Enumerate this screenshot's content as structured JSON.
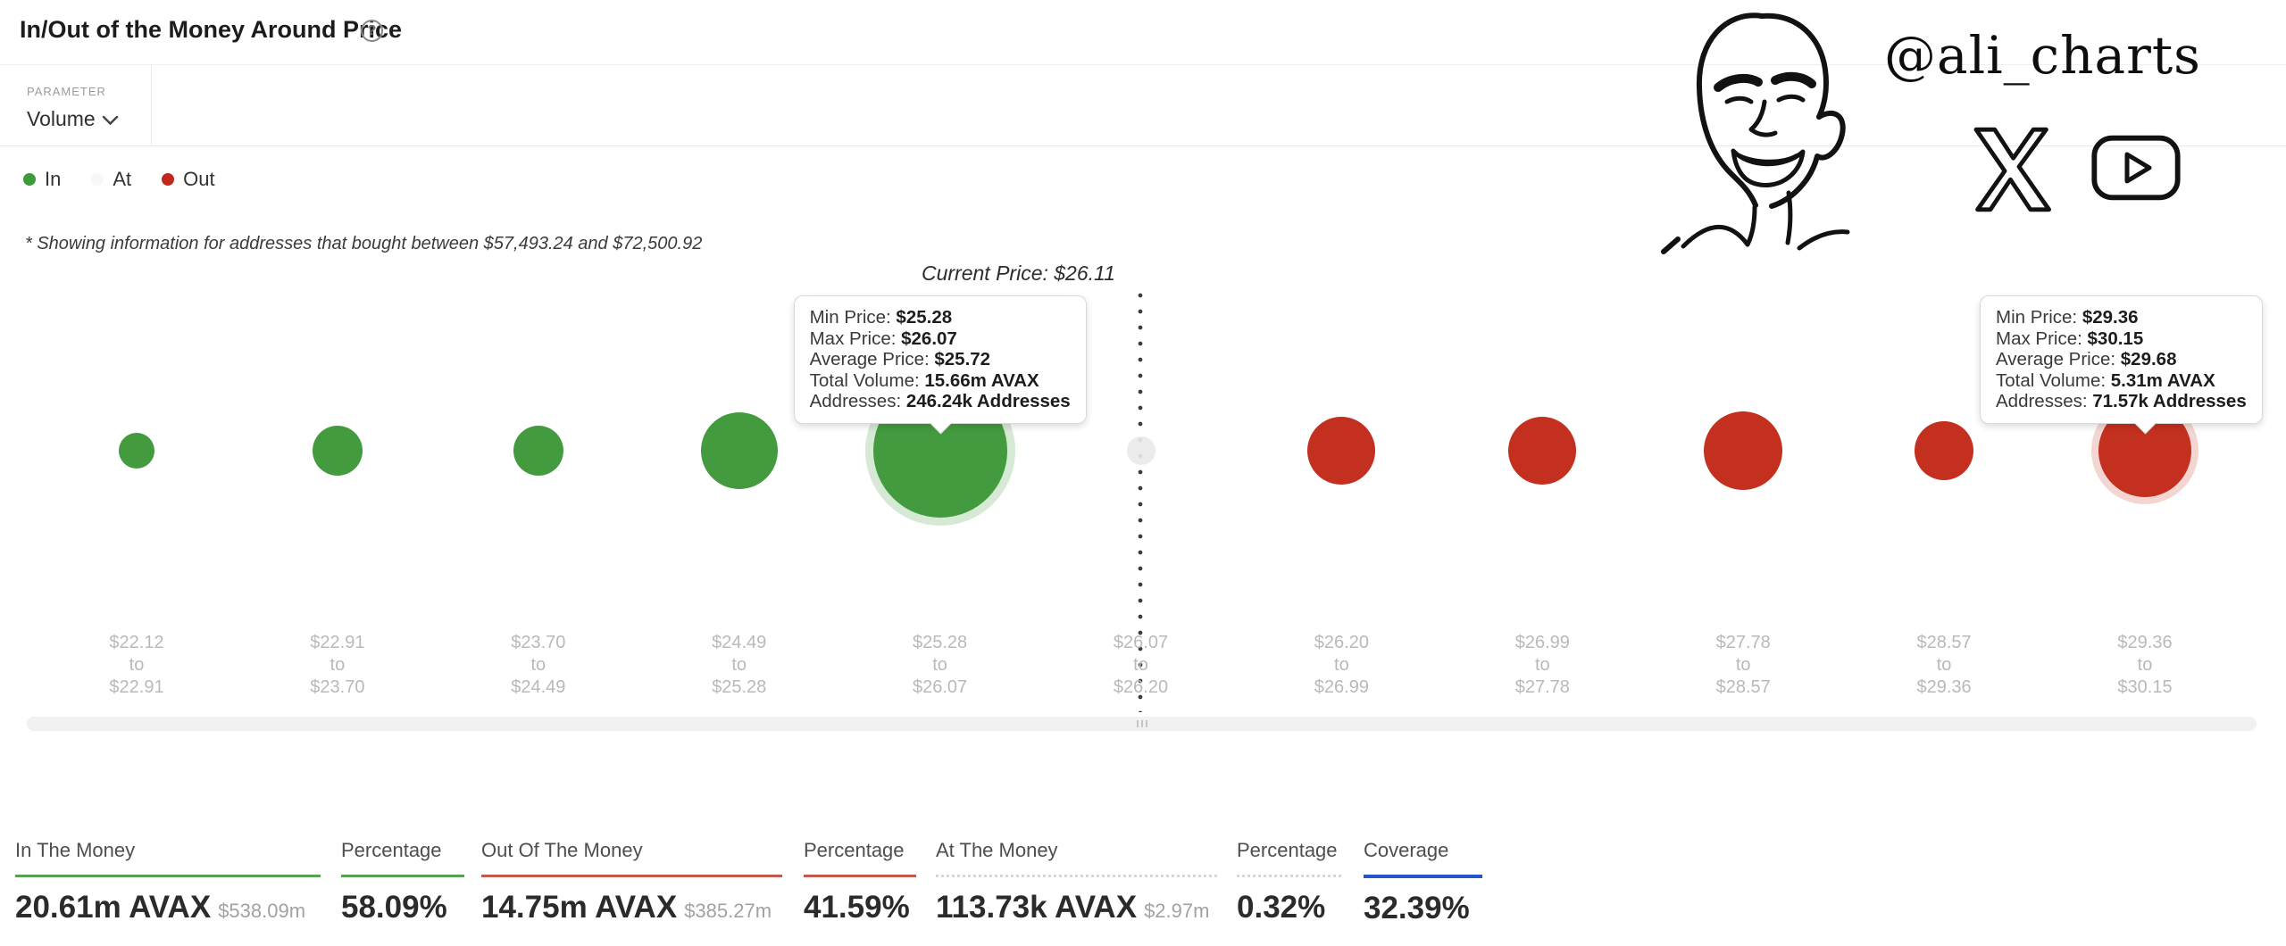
{
  "header": {
    "title": "In/Out of the Money Around Price",
    "help_glyph": "?"
  },
  "controls": {
    "parameter_label": "PARAMETER",
    "parameter_value": "Volume"
  },
  "legend": [
    {
      "label": "In",
      "color": "#3d9b3d"
    },
    {
      "label": "At",
      "color": "#f7f7f7"
    },
    {
      "label": "Out",
      "color": "#c0281e"
    }
  ],
  "note": "* Showing information for addresses that bought between $57,493.24 and $72,500.92",
  "watermark": {
    "handle": "@ali_charts",
    "icons": [
      "x-logo",
      "youtube-logo"
    ]
  },
  "chart_data": {
    "type": "bubble",
    "title": "In/Out of the Money Around Price",
    "parameter": "Volume",
    "current_price": 26.11,
    "current_price_label": "Current Price: $26.11",
    "x_axis_separator": "to",
    "legend_position": "top-left",
    "colors": {
      "in": "#449a3e",
      "at": "#e9e9e9",
      "out": "#c4301f"
    },
    "bins": [
      {
        "min": "$22.12",
        "max": "$22.91",
        "status": "in",
        "size": 20
      },
      {
        "min": "$22.91",
        "max": "$23.70",
        "status": "in",
        "size": 28
      },
      {
        "min": "$23.70",
        "max": "$24.49",
        "status": "in",
        "size": 28
      },
      {
        "min": "$24.49",
        "max": "$25.28",
        "status": "in",
        "size": 43
      },
      {
        "min": "$25.28",
        "max": "$26.07",
        "status": "in",
        "size": 75,
        "highlighted": true,
        "tooltip": {
          "rows": [
            {
              "label": "Min Price: ",
              "value": "$25.28"
            },
            {
              "label": "Max Price: ",
              "value": "$26.07"
            },
            {
              "label": "Average Price: ",
              "value": "$25.72"
            },
            {
              "label": "Total Volume: ",
              "value": "15.66m AVAX"
            },
            {
              "label": "Addresses: ",
              "value": "246.24k Addresses"
            }
          ]
        }
      },
      {
        "min": "$26.07",
        "max": "$26.20",
        "status": "at",
        "size": 16
      },
      {
        "min": "$26.20",
        "max": "$26.99",
        "status": "out",
        "size": 38
      },
      {
        "min": "$26.99",
        "max": "$27.78",
        "status": "out",
        "size": 38
      },
      {
        "min": "$27.78",
        "max": "$28.57",
        "status": "out",
        "size": 44
      },
      {
        "min": "$28.57",
        "max": "$29.36",
        "status": "out",
        "size": 33
      },
      {
        "min": "$29.36",
        "max": "$30.15",
        "status": "out",
        "size": 52,
        "highlighted": true,
        "tooltip": {
          "rows": [
            {
              "label": "Min Price: ",
              "value": "$29.36"
            },
            {
              "label": "Max Price: ",
              "value": "$30.15"
            },
            {
              "label": "Average Price: ",
              "value": "$29.68"
            },
            {
              "label": "Total Volume: ",
              "value": "5.31m AVAX"
            },
            {
              "label": "Addresses: ",
              "value": "71.57k Addresses"
            }
          ]
        }
      }
    ]
  },
  "stats": [
    {
      "label": "In The Money",
      "value": "20.61m AVAX",
      "sub": "$538.09m",
      "underline": "u-green"
    },
    {
      "label": "Percentage",
      "value": "58.09%",
      "sub": "",
      "underline": "u-green"
    },
    {
      "label": "Out Of The Money",
      "value": "14.75m AVAX",
      "sub": "$385.27m",
      "underline": "u-red"
    },
    {
      "label": "Percentage",
      "value": "41.59%",
      "sub": "",
      "underline": "u-red"
    },
    {
      "label": "At The Money",
      "value": "113.73k AVAX",
      "sub": "$2.97m",
      "underline": "u-dash"
    },
    {
      "label": "Percentage",
      "value": "0.32%",
      "sub": "",
      "underline": "u-dash"
    },
    {
      "label": "Coverage",
      "value": "32.39%",
      "sub": "",
      "underline": "u-blue"
    }
  ]
}
